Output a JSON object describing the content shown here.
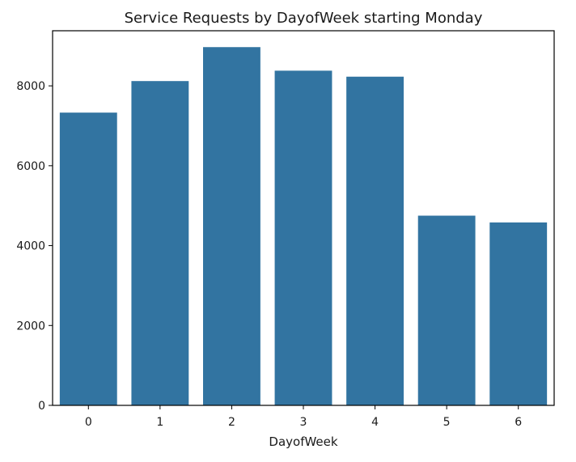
{
  "chart_data": {
    "type": "bar",
    "title": "Service Requests by DayofWeek starting Monday",
    "xlabel": "DayofWeek",
    "ylabel": "",
    "categories": [
      "0",
      "1",
      "2",
      "3",
      "4",
      "5",
      "6"
    ],
    "values": [
      7330,
      8120,
      8970,
      8380,
      8230,
      4750,
      4580
    ],
    "ylim": [
      0,
      9380
    ],
    "yticks": [
      0,
      2000,
      4000,
      6000,
      8000
    ],
    "yticks_labels": [
      "0",
      "2000",
      "4000",
      "6000",
      "8000"
    ],
    "bar_color": "#3274a1",
    "grid": false,
    "legend": "none"
  }
}
